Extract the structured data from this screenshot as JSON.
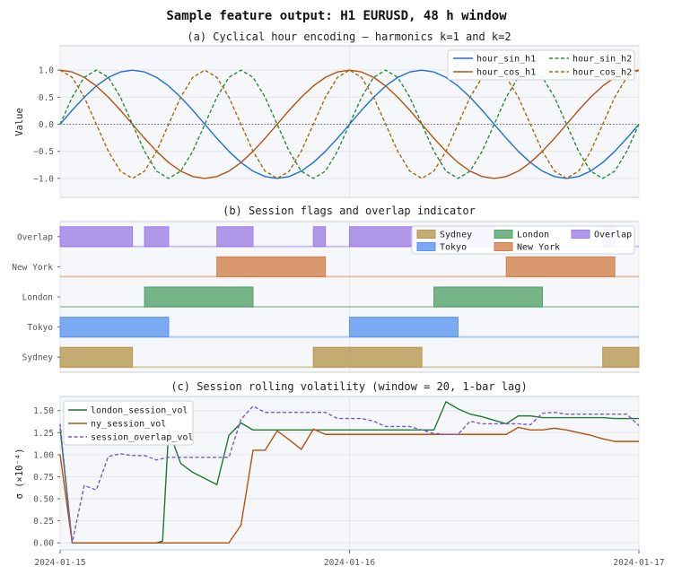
{
  "title": "Sample feature output: H1 EURUSD, 48 h window",
  "x_axis": {
    "range_hours": [
      0,
      48
    ],
    "ticks": [
      {
        "hour": 0,
        "label": "2024-01-15"
      },
      {
        "hour": 24,
        "label": "2024-01-16"
      },
      {
        "hour": 48,
        "label": "2024-01-17"
      }
    ]
  },
  "chart_data": [
    {
      "type": "line",
      "title": "(a)  Cyclical hour encoding — harmonics k=1 and k=2",
      "ylabel": "Value",
      "ylim": [
        -1.35,
        1.45
      ],
      "yticks": [
        {
          "v": 1.0,
          "label": "1.0"
        },
        {
          "v": 0.5,
          "label": "0.5"
        },
        {
          "v": 0.0,
          "label": "0.0"
        },
        {
          "v": -0.5,
          "label": "−0.5"
        },
        {
          "v": -1.0,
          "label": "−1.0"
        }
      ],
      "grid": true,
      "zero_line": true,
      "legend_placement": "top-right",
      "x_hours": [
        0,
        1,
        2,
        3,
        4,
        5,
        6,
        7,
        8,
        9,
        10,
        11,
        12,
        13,
        14,
        15,
        16,
        17,
        18,
        19,
        20,
        21,
        22,
        23,
        24,
        25,
        26,
        27,
        28,
        29,
        30,
        31,
        32,
        33,
        34,
        35,
        36,
        37,
        38,
        39,
        40,
        41,
        42,
        43,
        44,
        45,
        46,
        47,
        48
      ],
      "series": [
        {
          "name": "hour_sin_h1",
          "color": "#1f6fd6",
          "dash": "solid",
          "values": [
            0,
            0.259,
            0.5,
            0.707,
            0.866,
            0.966,
            1,
            0.966,
            0.866,
            0.707,
            0.5,
            0.259,
            0,
            -0.259,
            -0.5,
            -0.707,
            -0.866,
            -0.966,
            -1,
            -0.966,
            -0.866,
            -0.707,
            -0.5,
            -0.259,
            0,
            0.259,
            0.5,
            0.707,
            0.866,
            0.966,
            1,
            0.966,
            0.866,
            0.707,
            0.5,
            0.259,
            0,
            -0.259,
            -0.5,
            -0.707,
            -0.866,
            -0.966,
            -1,
            -0.966,
            -0.866,
            -0.707,
            -0.5,
            -0.259,
            0
          ]
        },
        {
          "name": "hour_cos_h1",
          "color": "#b5530f",
          "dash": "solid",
          "values": [
            1,
            0.966,
            0.866,
            0.707,
            0.5,
            0.259,
            0,
            -0.259,
            -0.5,
            -0.707,
            -0.866,
            -0.966,
            -1,
            -0.966,
            -0.866,
            -0.707,
            -0.5,
            -0.259,
            0,
            0.259,
            0.5,
            0.707,
            0.866,
            0.966,
            1,
            0.966,
            0.866,
            0.707,
            0.5,
            0.259,
            0,
            -0.259,
            -0.5,
            -0.707,
            -0.866,
            -0.966,
            -1,
            -0.966,
            -0.866,
            -0.707,
            -0.5,
            -0.259,
            0,
            0.259,
            0.5,
            0.707,
            0.866,
            0.966,
            1
          ]
        },
        {
          "name": "hour_sin_h2",
          "color": "#2a8a3a",
          "dash": "dashed",
          "values": [
            0,
            0.5,
            0.866,
            1,
            0.866,
            0.5,
            0,
            -0.5,
            -0.866,
            -1,
            -0.866,
            -0.5,
            0,
            0.5,
            0.866,
            1,
            0.866,
            0.5,
            0,
            -0.5,
            -0.866,
            -1,
            -0.866,
            -0.5,
            0,
            0.5,
            0.866,
            1,
            0.866,
            0.5,
            0,
            -0.5,
            -0.866,
            -1,
            -0.866,
            -0.5,
            0,
            0.5,
            0.866,
            1,
            0.866,
            0.5,
            0,
            -0.5,
            -0.866,
            -1,
            -0.866,
            -0.5,
            0
          ]
        },
        {
          "name": "hour_cos_h2",
          "color": "#a86a05",
          "dash": "dashed",
          "values": [
            1,
            0.866,
            0.5,
            0,
            -0.5,
            -0.866,
            -1,
            -0.866,
            -0.5,
            0,
            0.5,
            0.866,
            1,
            0.866,
            0.5,
            0,
            -0.5,
            -0.866,
            -1,
            -0.866,
            -0.5,
            0,
            0.5,
            0.866,
            1,
            0.866,
            0.5,
            0,
            -0.5,
            -0.866,
            -1,
            -0.866,
            -0.5,
            0,
            0.5,
            0.866,
            1,
            0.866,
            0.5,
            0,
            -0.5,
            -0.866,
            -1,
            -0.866,
            -0.5,
            0,
            0.5,
            0.866,
            1
          ]
        }
      ]
    },
    {
      "type": "bar",
      "title": "(b)  Session flags and overlap indicator",
      "legend_placement": "top-right",
      "legend_columns": 3,
      "legend_order": [
        "Sydney",
        "Tokyo",
        "London",
        "New York",
        "Overlap"
      ],
      "rows": [
        {
          "name": "Overlap",
          "color": "#9e7fe6",
          "spans": [
            [
              0,
              6
            ],
            [
              7,
              9
            ],
            [
              13,
              16
            ],
            [
              21,
              22
            ],
            [
              24,
              36
            ],
            [
              45,
              46
            ]
          ]
        },
        {
          "name": "New York",
          "color": "#d2804a",
          "spans": [
            [
              13,
              22
            ],
            [
              37,
              46
            ]
          ]
        },
        {
          "name": "London",
          "color": "#55a26a",
          "spans": [
            [
              7,
              16
            ],
            [
              31,
              40
            ]
          ]
        },
        {
          "name": "Tokyo",
          "color": "#5a96f0",
          "spans": [
            [
              0,
              9
            ],
            [
              24,
              33
            ]
          ]
        },
        {
          "name": "Sydney",
          "color": "#b8974f",
          "spans": [
            [
              0,
              6
            ],
            [
              21,
              30
            ],
            [
              45,
              48
            ]
          ]
        }
      ]
    },
    {
      "type": "line",
      "title": "(c)  Session rolling volatility  (window = 20, 1-bar lag)",
      "ylabel": "σ  (×10⁻⁴)",
      "ylim": [
        -0.08,
        1.66
      ],
      "yticks": [
        {
          "v": 0.0,
          "label": "0.00"
        },
        {
          "v": 0.25,
          "label": "0.25"
        },
        {
          "v": 0.5,
          "label": "0.50"
        },
        {
          "v": 0.75,
          "label": "0.75"
        },
        {
          "v": 1.0,
          "label": "1.00"
        },
        {
          "v": 1.25,
          "label": "1.25"
        },
        {
          "v": 1.5,
          "label": "1.50"
        }
      ],
      "grid": true,
      "legend_placement": "top-left",
      "series": [
        {
          "name": "london_session_vol",
          "color": "#1e7a30",
          "dash": "solid",
          "x": [
            0,
            1,
            2,
            3,
            4,
            5,
            6,
            7,
            8,
            8.5,
            9,
            10,
            11,
            12,
            13,
            14,
            15,
            16,
            17,
            18,
            19,
            20,
            21,
            22,
            23,
            24,
            25,
            26,
            27,
            28,
            29,
            30,
            31,
            32,
            33,
            34,
            35,
            36,
            37,
            38,
            39,
            40,
            41,
            42,
            43,
            44,
            45,
            46,
            47,
            48
          ],
          "y": [
            1.3,
            0,
            0,
            0,
            0,
            0,
            0,
            0,
            0,
            0.02,
            1.28,
            0.9,
            0.8,
            0.73,
            0.66,
            1.22,
            1.36,
            1.28,
            1.28,
            1.28,
            1.28,
            1.28,
            1.28,
            1.28,
            1.28,
            1.28,
            1.28,
            1.28,
            1.28,
            1.28,
            1.28,
            1.28,
            1.28,
            1.6,
            1.52,
            1.46,
            1.43,
            1.39,
            1.35,
            1.44,
            1.44,
            1.42,
            1.42,
            1.42,
            1.42,
            1.42,
            1.42,
            1.41,
            1.41,
            1.41
          ]
        },
        {
          "name": "ny_session_vol",
          "color": "#b5530f",
          "dash": "solid",
          "x": [
            0,
            1,
            2,
            3,
            4,
            5,
            6,
            7,
            8,
            9,
            10,
            11,
            12,
            13,
            14,
            15,
            16,
            17,
            18,
            19,
            20,
            21,
            22,
            23,
            24,
            25,
            26,
            27,
            28,
            29,
            30,
            31,
            32,
            33,
            34,
            35,
            36,
            37,
            38,
            39,
            40,
            41,
            42,
            43,
            44,
            45,
            46,
            47,
            48
          ],
          "y": [
            1.0,
            0,
            0,
            0,
            0,
            0,
            0,
            0,
            0,
            0,
            0,
            0,
            0,
            0,
            0,
            0.2,
            1.05,
            1.05,
            1.27,
            1.17,
            1.06,
            1.29,
            1.23,
            1.23,
            1.23,
            1.23,
            1.23,
            1.23,
            1.23,
            1.23,
            1.23,
            1.23,
            1.23,
            1.23,
            1.23,
            1.23,
            1.23,
            1.23,
            1.31,
            1.28,
            1.28,
            1.3,
            1.28,
            1.25,
            1.22,
            1.18,
            1.15,
            1.15,
            1.15
          ]
        },
        {
          "name": "session_overlap_vol",
          "color": "#7a55d6",
          "dash": "dashed",
          "x": [
            0,
            1,
            2,
            3,
            4,
            5,
            6,
            7,
            8,
            9,
            10,
            11,
            12,
            13,
            14,
            15,
            16,
            17,
            18,
            19,
            20,
            21,
            22,
            23,
            24,
            25,
            26,
            27,
            28,
            29,
            30,
            31,
            32,
            33,
            34,
            35,
            36,
            37,
            38,
            39,
            40,
            41,
            42,
            43,
            44,
            45,
            46,
            47,
            48
          ],
          "y": [
            1.35,
            0,
            0.65,
            0.6,
            0.98,
            1.01,
            0.99,
            0.99,
            0.94,
            0.97,
            0.97,
            0.97,
            0.97,
            0.97,
            0.97,
            1.4,
            1.55,
            1.48,
            1.48,
            1.48,
            1.48,
            1.48,
            1.48,
            1.41,
            1.41,
            1.41,
            1.38,
            1.32,
            1.32,
            1.32,
            1.28,
            1.24,
            1.23,
            1.23,
            1.38,
            1.35,
            1.35,
            1.35,
            1.35,
            1.34,
            1.47,
            1.48,
            1.46,
            1.46,
            1.46,
            1.46,
            1.46,
            1.46,
            1.33
          ]
        }
      ]
    }
  ]
}
